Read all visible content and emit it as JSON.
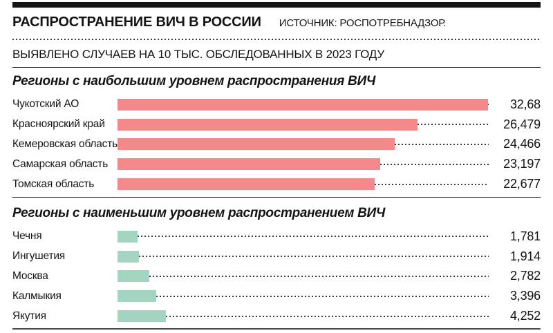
{
  "header": {
    "title": "РАСПРОСТРАНЕНИЕ ВИЧ В РОССИИ",
    "source": "ИСТОЧНИК: РОСПОТРЕБНАДЗОР.",
    "subtitle": "ВЫЯВЛЕНО СЛУЧАЕВ НА 10 ТЫС. ОБСЛЕДОВАННЫХ В 2023 ГОДУ"
  },
  "chart_data": {
    "type": "bar",
    "orientation": "horizontal",
    "title": "РАСПРОСТРАНЕНИЕ ВИЧ В РОССИИ",
    "subtitle": "ВЫЯВЛЕНО СЛУЧАЕВ НА 10 ТЫС. ОБСЛЕДОВАННЫХ В 2023 ГОДУ",
    "xlim": [
      0,
      32.68
    ],
    "grid": false,
    "legend": false,
    "sections": [
      {
        "title": "Регионы с наибольшим уровнем распространения ВИЧ",
        "bar_color": "#f4898c",
        "categories": [
          "Чукотский АО",
          "Красноярский край",
          "Кемеровская область",
          "Самарская область",
          "Томская область"
        ],
        "values": [
          32.68,
          26.479,
          24.466,
          23.197,
          22.677
        ],
        "value_labels": [
          "32,68",
          "26,479",
          "24,466",
          "23,197",
          "22,677"
        ]
      },
      {
        "title": "Регионы с наименьшим уровнем распространением ВИЧ",
        "bar_color": "#a3d5c0",
        "categories": [
          "Чечня",
          "Ингушетия",
          "Москва",
          "Калмыкия",
          "Якутия"
        ],
        "values": [
          1.781,
          1.914,
          2.782,
          3.396,
          4.252
        ],
        "value_labels": [
          "1,781",
          "1,914",
          "2,782",
          "3,396",
          "4,252"
        ]
      }
    ]
  },
  "colors": {
    "high_bar": "#f4898c",
    "low_bar": "#a3d5c0",
    "text": "#141414",
    "rule": "#1a1a1a",
    "dots": "#3a3a3a"
  }
}
